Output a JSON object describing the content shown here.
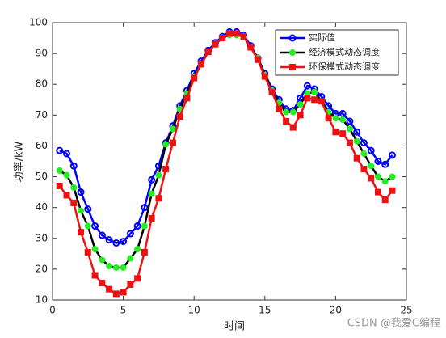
{
  "chart_data": {
    "type": "line",
    "xlabel": "时间",
    "ylabel": "功率/kW",
    "x": [
      0.5,
      1,
      1.5,
      2,
      2.5,
      3,
      3.5,
      4,
      4.5,
      5,
      5.5,
      6,
      6.5,
      7,
      7.5,
      8,
      8.5,
      9,
      9.5,
      10,
      10.5,
      11,
      11.5,
      12,
      12.5,
      13,
      13.5,
      14,
      14.5,
      15,
      15.5,
      16,
      16.5,
      17,
      17.5,
      18,
      18.5,
      19,
      19.5,
      20,
      20.5,
      21,
      21.5,
      22,
      22.5,
      23,
      23.5,
      24
    ],
    "series": [
      {
        "name": "实际值",
        "color": "#0000ff",
        "marker_color": "#0000ff",
        "marker": "open-circle",
        "values": [
          58.5,
          57.5,
          53.5,
          45,
          39.5,
          34,
          31,
          29.5,
          28.5,
          29,
          31.5,
          34,
          40,
          49,
          53.5,
          61,
          66.5,
          73,
          78,
          83.5,
          87.5,
          91,
          93.5,
          95.5,
          97,
          97,
          96,
          92.5,
          88.5,
          83.5,
          78.5,
          75,
          72,
          71.5,
          75.5,
          79.5,
          78.5,
          76,
          73,
          70.5,
          70.5,
          68,
          64.5,
          61,
          58.5,
          55,
          54,
          57
        ]
      },
      {
        "name": "经济模式动态调度",
        "color": "#000000",
        "marker_color": "#22ee22",
        "marker": "circle",
        "values": [
          52,
          50.5,
          46.5,
          39,
          34,
          26.5,
          23,
          21,
          20.5,
          20.5,
          23.5,
          26.5,
          34,
          44.5,
          50.5,
          60.5,
          65.5,
          72,
          77,
          82.5,
          86.5,
          90.5,
          93,
          95,
          96,
          96,
          95.5,
          92,
          88.5,
          83,
          78,
          74,
          71,
          71,
          73.5,
          77,
          77.5,
          74.5,
          71,
          69,
          68.5,
          65.5,
          61.5,
          57.5,
          53.5,
          50,
          48.5,
          50
        ]
      },
      {
        "name": "环保模式动态调度",
        "color": "#ee1111",
        "marker_color": "#ee1111",
        "marker": "square",
        "values": [
          47,
          44,
          41.5,
          32,
          25.5,
          18,
          15.5,
          13.5,
          12,
          12.5,
          15,
          17,
          25.5,
          36.5,
          43,
          52.5,
          61,
          69.5,
          75.5,
          82,
          86.5,
          90.5,
          93,
          95,
          96.5,
          96.5,
          95.5,
          92,
          88,
          82.5,
          77.5,
          72,
          68,
          66,
          70,
          75.5,
          75,
          74.5,
          69,
          64.5,
          64,
          61,
          56,
          52.5,
          49.5,
          45,
          42.5,
          45.5
        ]
      }
    ],
    "xlim": [
      0,
      25
    ],
    "xticks": [
      0,
      5,
      10,
      15,
      20,
      25
    ],
    "ylim": [
      10,
      100
    ],
    "yticks": [
      10,
      20,
      30,
      40,
      50,
      60,
      70,
      80,
      90,
      100
    ],
    "grid": false,
    "legend": "top-right",
    "watermark": "CSDN @我爱C编程"
  }
}
